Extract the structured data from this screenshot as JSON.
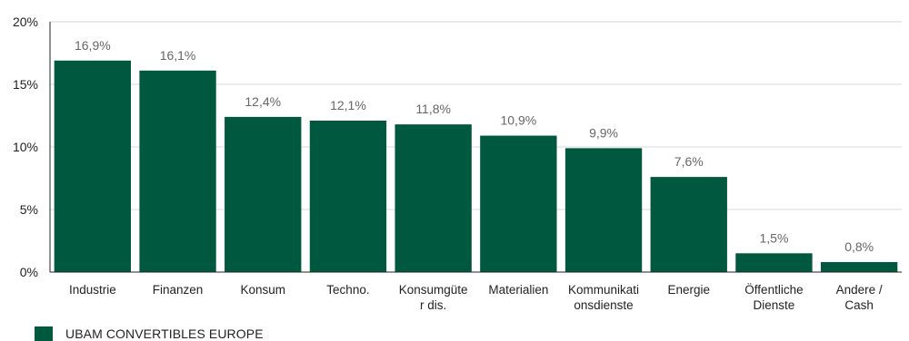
{
  "chart_data": {
    "type": "bar",
    "categories": [
      [
        "Industrie"
      ],
      [
        "Finanzen"
      ],
      [
        "Konsum"
      ],
      [
        "Techno."
      ],
      [
        "Konsumgüte",
        "r dis."
      ],
      [
        "Materialien"
      ],
      [
        "Kommunikati",
        "onsdienste"
      ],
      [
        "Energie"
      ],
      [
        "Öffentliche",
        "Dienste"
      ],
      [
        "Andere /",
        "Cash"
      ]
    ],
    "series": [
      {
        "name": "UBAM CONVERTIBLES EUROPE",
        "values": [
          16.9,
          16.1,
          12.4,
          12.1,
          11.8,
          10.9,
          9.9,
          7.6,
          1.5,
          0.8
        ],
        "labels": [
          "16,9%",
          "16,1%",
          "12,4%",
          "12,1%",
          "11,8%",
          "10,9%",
          "9,9%",
          "7,6%",
          "1,5%",
          "0,8%"
        ]
      }
    ],
    "ylim": [
      0,
      20
    ],
    "yticks": [
      0,
      5,
      10,
      15,
      20
    ],
    "ytick_labels": [
      "0%",
      "5%",
      "10%",
      "15%",
      "20%"
    ],
    "grid": true,
    "legend": "bottom-left",
    "color": "#00583e"
  }
}
